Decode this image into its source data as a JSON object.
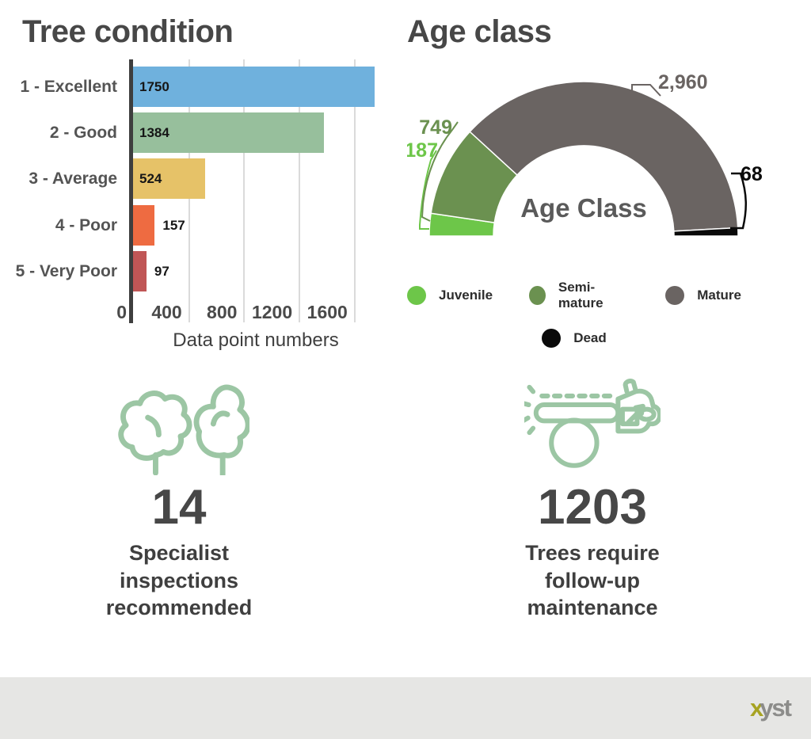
{
  "chart_data": [
    {
      "type": "bar",
      "orientation": "horizontal",
      "title": "Tree condition",
      "xlabel": "Data point numbers",
      "categories": [
        "1 - Excellent",
        "2 - Good",
        "3 - Average",
        "4 - Poor",
        "5 - Very Poor"
      ],
      "values": [
        1750,
        1384,
        524,
        157,
        97
      ],
      "value_labels": [
        "1750",
        "1384",
        "524",
        "157",
        "97"
      ],
      "bar_colors": [
        "#6FB1DD",
        "#97BF9C",
        "#E6C268",
        "#EE6B41",
        "#C05656"
      ],
      "xticks": [
        0,
        400,
        800,
        1200,
        1600
      ],
      "xlim": [
        0,
        1750
      ],
      "grid": true
    },
    {
      "type": "pie",
      "subtype": "semicircle-donut-gauge",
      "title": "Age class",
      "center_label": "Age Class",
      "categories": [
        "Juvenile",
        "Semi-mature",
        "Mature",
        "Dead"
      ],
      "values": [
        187,
        749,
        2960,
        68
      ],
      "value_labels": [
        "187",
        "749",
        "2,960",
        "68"
      ],
      "colors": [
        "#6DC649",
        "#6B9150",
        "#6A6462",
        "#0A0A0A"
      ],
      "legend_position": "bottom",
      "legend_rows": [
        [
          "Juvenile",
          "Semi-mature",
          "Mature"
        ],
        [
          "Dead"
        ]
      ]
    }
  ],
  "stats": [
    {
      "icon": "two-trees",
      "value": "14",
      "caption": "Specialist inspections recommended"
    },
    {
      "icon": "chainsaw",
      "value": "1203",
      "caption": "Trees require follow-up maintenance"
    }
  ],
  "footer": {
    "brand_accent": "x",
    "brand_rest": "yst"
  },
  "style": {
    "icon_color": "#9CC6A4",
    "title_color": "#474747",
    "footer_bg": "#E6E6E4"
  }
}
